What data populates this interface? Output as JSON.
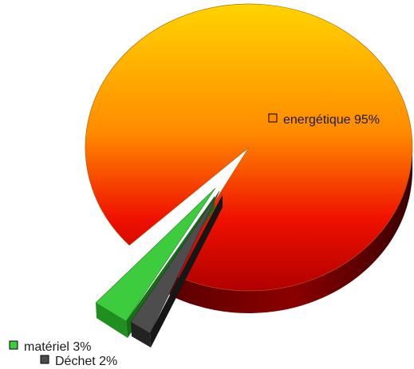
{
  "chart_data": {
    "type": "pie",
    "style": "3d-exploded",
    "categories": [
      "energétique",
      "matériel",
      "Déchet"
    ],
    "values": [
      95,
      3,
      2
    ],
    "unit": "%",
    "legend": [
      {
        "name": "energétique",
        "value_label": "energétique 95%"
      },
      {
        "name": "matériel",
        "value_label": "matériel 3%"
      },
      {
        "name": "Déchet",
        "value_label": "Déchet 2%"
      }
    ],
    "colors": {
      "energétique_top": "#ffd400",
      "energétique_mid": "#ff8a00",
      "energétique_bottom": "#e60000",
      "energétique_side": "#8b0000",
      "matériel": "#3dcc3d",
      "matériel_side": "#1f8f1f",
      "Déchet": "#4d4d4d",
      "Déchet_side": "#222222"
    },
    "title": ""
  }
}
